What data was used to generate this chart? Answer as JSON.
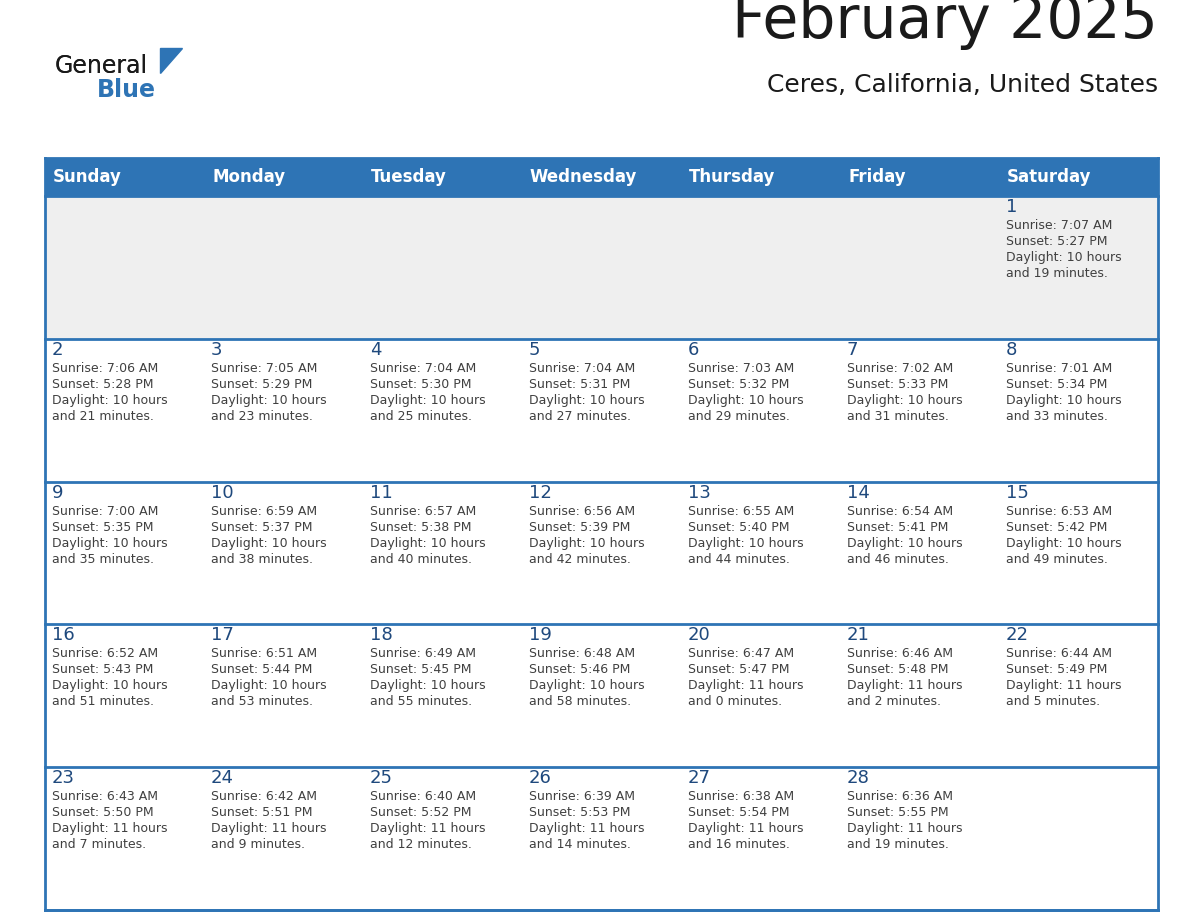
{
  "title": "February 2025",
  "subtitle": "Ceres, California, United States",
  "header_color": "#2E74B5",
  "header_text_color": "#FFFFFF",
  "background_color": "#FFFFFF",
  "cell_bg_white": "#FFFFFF",
  "cell_bg_gray": "#EFEFEF",
  "separator_color": "#2E74B5",
  "day_number_color": "#1F497D",
  "info_text_color": "#404040",
  "day_headers": [
    "Sunday",
    "Monday",
    "Tuesday",
    "Wednesday",
    "Thursday",
    "Friday",
    "Saturday"
  ],
  "weeks": [
    [
      {
        "day": "",
        "info": ""
      },
      {
        "day": "",
        "info": ""
      },
      {
        "day": "",
        "info": ""
      },
      {
        "day": "",
        "info": ""
      },
      {
        "day": "",
        "info": ""
      },
      {
        "day": "",
        "info": ""
      },
      {
        "day": "1",
        "info": "Sunrise: 7:07 AM\nSunset: 5:27 PM\nDaylight: 10 hours\nand 19 minutes."
      }
    ],
    [
      {
        "day": "2",
        "info": "Sunrise: 7:06 AM\nSunset: 5:28 PM\nDaylight: 10 hours\nand 21 minutes."
      },
      {
        "day": "3",
        "info": "Sunrise: 7:05 AM\nSunset: 5:29 PM\nDaylight: 10 hours\nand 23 minutes."
      },
      {
        "day": "4",
        "info": "Sunrise: 7:04 AM\nSunset: 5:30 PM\nDaylight: 10 hours\nand 25 minutes."
      },
      {
        "day": "5",
        "info": "Sunrise: 7:04 AM\nSunset: 5:31 PM\nDaylight: 10 hours\nand 27 minutes."
      },
      {
        "day": "6",
        "info": "Sunrise: 7:03 AM\nSunset: 5:32 PM\nDaylight: 10 hours\nand 29 minutes."
      },
      {
        "day": "7",
        "info": "Sunrise: 7:02 AM\nSunset: 5:33 PM\nDaylight: 10 hours\nand 31 minutes."
      },
      {
        "day": "8",
        "info": "Sunrise: 7:01 AM\nSunset: 5:34 PM\nDaylight: 10 hours\nand 33 minutes."
      }
    ],
    [
      {
        "day": "9",
        "info": "Sunrise: 7:00 AM\nSunset: 5:35 PM\nDaylight: 10 hours\nand 35 minutes."
      },
      {
        "day": "10",
        "info": "Sunrise: 6:59 AM\nSunset: 5:37 PM\nDaylight: 10 hours\nand 38 minutes."
      },
      {
        "day": "11",
        "info": "Sunrise: 6:57 AM\nSunset: 5:38 PM\nDaylight: 10 hours\nand 40 minutes."
      },
      {
        "day": "12",
        "info": "Sunrise: 6:56 AM\nSunset: 5:39 PM\nDaylight: 10 hours\nand 42 minutes."
      },
      {
        "day": "13",
        "info": "Sunrise: 6:55 AM\nSunset: 5:40 PM\nDaylight: 10 hours\nand 44 minutes."
      },
      {
        "day": "14",
        "info": "Sunrise: 6:54 AM\nSunset: 5:41 PM\nDaylight: 10 hours\nand 46 minutes."
      },
      {
        "day": "15",
        "info": "Sunrise: 6:53 AM\nSunset: 5:42 PM\nDaylight: 10 hours\nand 49 minutes."
      }
    ],
    [
      {
        "day": "16",
        "info": "Sunrise: 6:52 AM\nSunset: 5:43 PM\nDaylight: 10 hours\nand 51 minutes."
      },
      {
        "day": "17",
        "info": "Sunrise: 6:51 AM\nSunset: 5:44 PM\nDaylight: 10 hours\nand 53 minutes."
      },
      {
        "day": "18",
        "info": "Sunrise: 6:49 AM\nSunset: 5:45 PM\nDaylight: 10 hours\nand 55 minutes."
      },
      {
        "day": "19",
        "info": "Sunrise: 6:48 AM\nSunset: 5:46 PM\nDaylight: 10 hours\nand 58 minutes."
      },
      {
        "day": "20",
        "info": "Sunrise: 6:47 AM\nSunset: 5:47 PM\nDaylight: 11 hours\nand 0 minutes."
      },
      {
        "day": "21",
        "info": "Sunrise: 6:46 AM\nSunset: 5:48 PM\nDaylight: 11 hours\nand 2 minutes."
      },
      {
        "day": "22",
        "info": "Sunrise: 6:44 AM\nSunset: 5:49 PM\nDaylight: 11 hours\nand 5 minutes."
      }
    ],
    [
      {
        "day": "23",
        "info": "Sunrise: 6:43 AM\nSunset: 5:50 PM\nDaylight: 11 hours\nand 7 minutes."
      },
      {
        "day": "24",
        "info": "Sunrise: 6:42 AM\nSunset: 5:51 PM\nDaylight: 11 hours\nand 9 minutes."
      },
      {
        "day": "25",
        "info": "Sunrise: 6:40 AM\nSunset: 5:52 PM\nDaylight: 11 hours\nand 12 minutes."
      },
      {
        "day": "26",
        "info": "Sunrise: 6:39 AM\nSunset: 5:53 PM\nDaylight: 11 hours\nand 14 minutes."
      },
      {
        "day": "27",
        "info": "Sunrise: 6:38 AM\nSunset: 5:54 PM\nDaylight: 11 hours\nand 16 minutes."
      },
      {
        "day": "28",
        "info": "Sunrise: 6:36 AM\nSunset: 5:55 PM\nDaylight: 11 hours\nand 19 minutes."
      },
      {
        "day": "",
        "info": ""
      }
    ]
  ],
  "logo_general_color": "#1a1a1a",
  "logo_blue_color": "#2E74B5",
  "logo_triangle_color": "#2E74B5"
}
